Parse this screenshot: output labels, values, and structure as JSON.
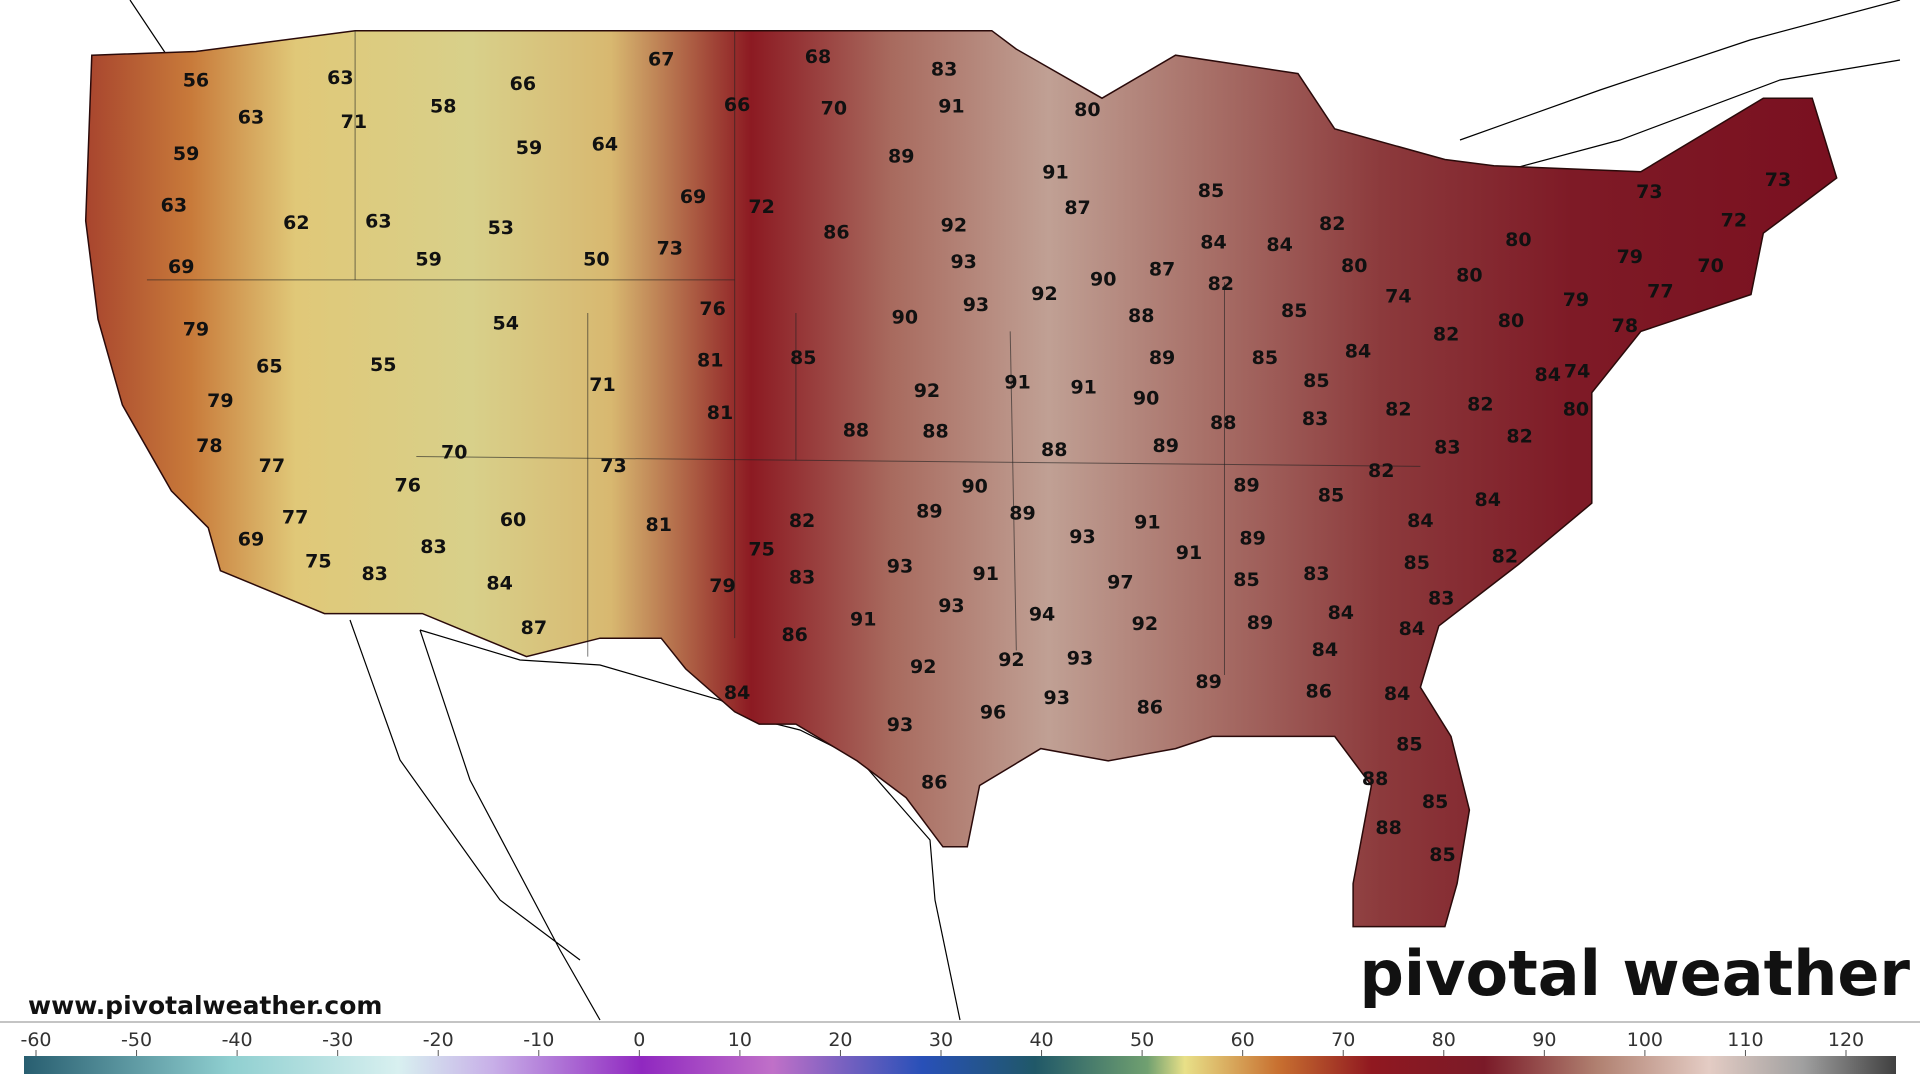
{
  "map": {
    "labels": [
      56,
      63,
      63,
      71,
      58,
      66,
      67,
      68,
      83,
      66,
      70,
      91,
      80,
      59,
      59,
      64,
      89,
      91,
      85,
      63,
      62,
      63,
      53,
      69,
      72,
      87,
      73,
      73,
      86,
      92,
      82,
      72,
      80,
      69,
      59,
      50,
      73,
      93,
      84,
      84,
      80,
      79,
      70,
      87,
      82,
      80,
      74,
      77,
      79,
      90,
      92,
      93,
      76,
      85,
      80,
      82,
      78,
      79,
      54,
      90,
      88,
      84,
      85,
      89,
      81,
      55,
      65,
      85,
      84,
      74,
      71,
      91,
      91,
      92,
      85,
      82,
      82,
      80,
      79,
      81,
      90,
      88,
      88,
      88,
      83,
      82,
      78,
      70,
      88,
      89,
      83,
      77,
      73,
      82,
      76,
      90,
      89,
      85,
      84,
      89,
      89,
      77,
      60,
      81,
      82,
      91,
      84,
      89,
      93,
      75,
      69,
      83,
      91,
      85,
      82,
      75,
      93,
      91,
      83,
      85,
      83,
      97,
      83,
      84,
      79,
      83,
      93,
      94,
      84,
      89,
      91,
      92,
      87,
      86,
      84,
      84,
      92,
      93,
      92,
      89,
      86,
      84,
      84,
      93,
      96,
      86,
      93,
      85,
      88,
      86,
      85,
      88,
      85
    ]
  },
  "colorbar": {
    "ticks": [
      -60,
      -50,
      -40,
      -30,
      -20,
      -10,
      0,
      10,
      20,
      30,
      40,
      50,
      60,
      70,
      80,
      90,
      100,
      110,
      120
    ]
  },
  "footer": {
    "url": "www.pivotalweather.com",
    "logo": "pivotal weather"
  }
}
